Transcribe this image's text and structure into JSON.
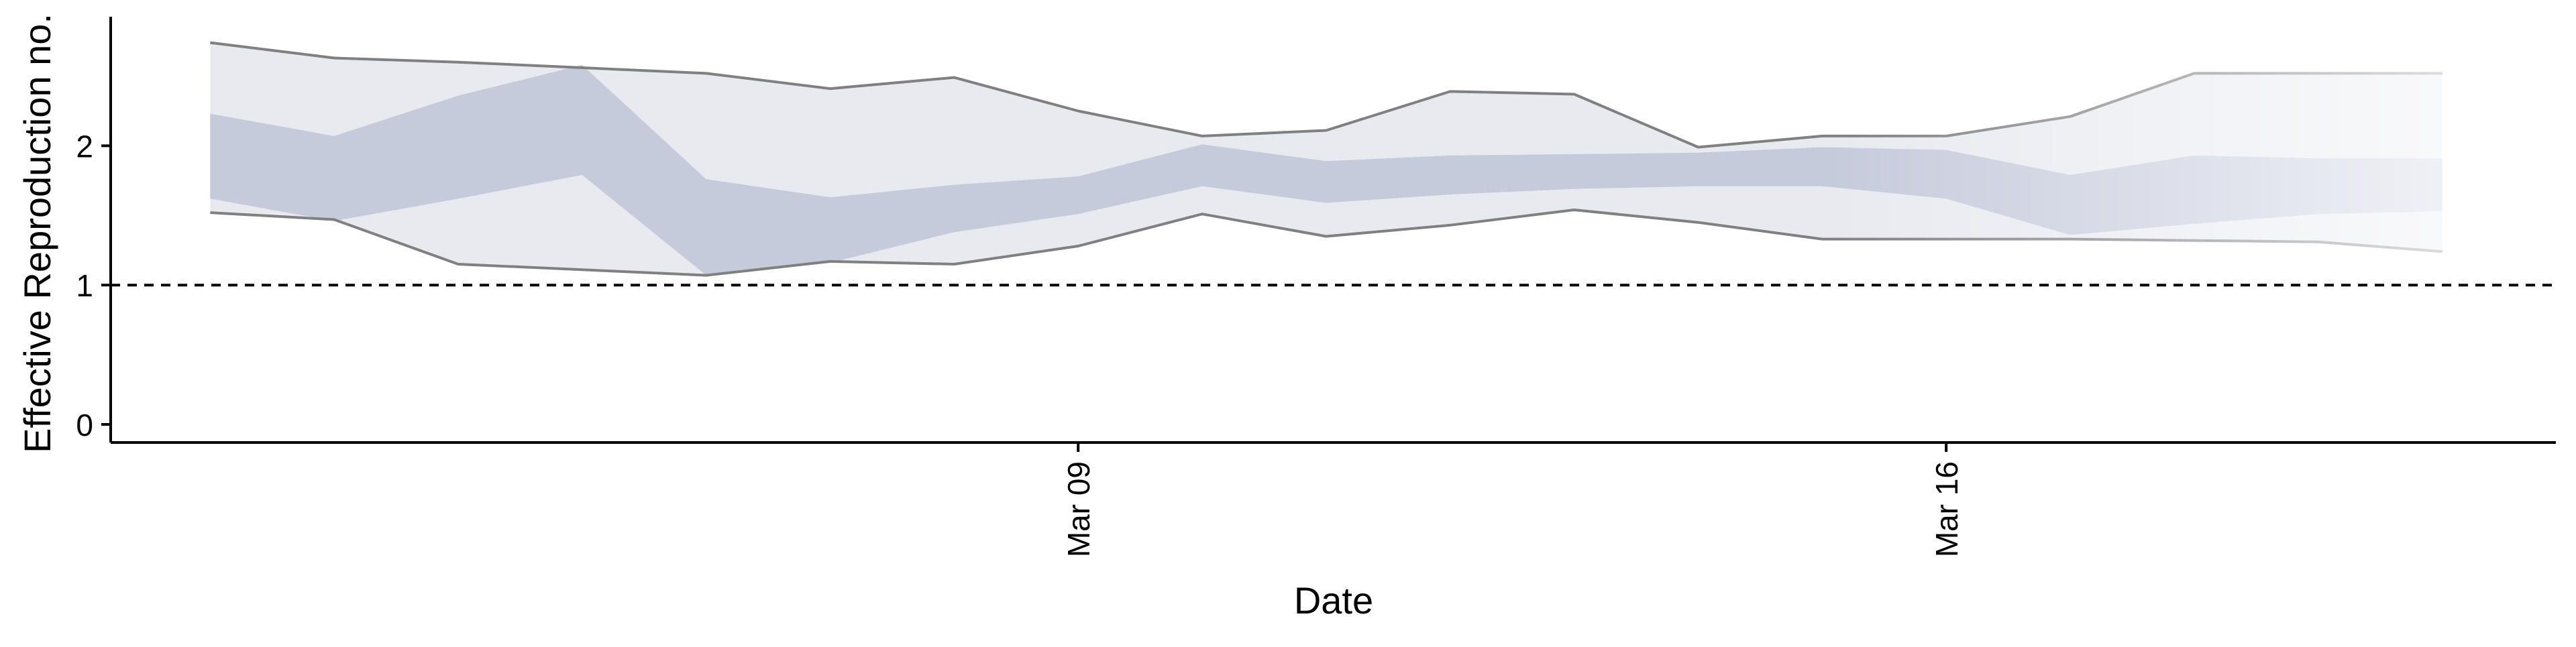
{
  "chart_data": {
    "type": "area",
    "title": "",
    "xlabel": "Date",
    "ylabel": "Effective Reproduction no.",
    "x": [
      "2020-03-02",
      "2020-03-03",
      "2020-03-04",
      "2020-03-05",
      "2020-03-06",
      "2020-03-07",
      "2020-03-08",
      "2020-03-09",
      "2020-03-10",
      "2020-03-11",
      "2020-03-12",
      "2020-03-13",
      "2020-03-14",
      "2020-03-15",
      "2020-03-16",
      "2020-03-17",
      "2020-03-18",
      "2020-03-19",
      "2020-03-20"
    ],
    "x_ticks": [
      {
        "date": "2020-03-09",
        "label": "Mar 09"
      },
      {
        "date": "2020-03-16",
        "label": "Mar 16"
      }
    ],
    "xlim": [
      "2020-03-01T04:45",
      "2020-03-20T22:00"
    ],
    "y_ticks": [
      0,
      1,
      2
    ],
    "ylim": [
      -0.13,
      2.95
    ],
    "reference_line": {
      "y": 1,
      "style": "dashed"
    },
    "series": [
      {
        "lower": [
          1.52,
          1.47,
          1.15,
          1.11,
          1.07,
          1.17,
          1.15,
          1.28,
          1.51,
          1.35,
          1.43,
          1.54,
          1.45,
          1.33,
          1.33,
          1.33,
          1.32,
          1.31,
          1.24
        ],
        "upper": [
          2.74,
          2.63,
          2.6,
          2.56,
          2.52,
          2.41,
          2.49,
          2.25,
          2.07,
          2.11,
          2.39,
          2.37,
          1.99,
          2.07,
          2.07,
          2.21,
          2.52,
          2.52,
          2.52
        ]
      },
      {
        "lower": [
          1.62,
          1.46,
          1.62,
          1.79,
          1.07,
          1.16,
          1.38,
          1.51,
          1.71,
          1.59,
          1.65,
          1.69,
          1.71,
          1.71,
          1.62,
          1.36,
          1.44,
          1.51,
          1.53
        ],
        "upper": [
          2.23,
          2.07,
          2.36,
          2.58,
          1.76,
          1.63,
          1.72,
          1.78,
          2.01,
          1.89,
          1.93,
          1.94,
          1.95,
          1.99,
          1.97,
          1.79,
          1.93,
          1.91,
          1.91
        ]
      }
    ],
    "colors": {
      "outer_band": "#e8eaf0",
      "inner_band": "#c6cbdc",
      "bound_line": "#808080",
      "axis": "#000000"
    },
    "grid": false,
    "legend": "none"
  }
}
